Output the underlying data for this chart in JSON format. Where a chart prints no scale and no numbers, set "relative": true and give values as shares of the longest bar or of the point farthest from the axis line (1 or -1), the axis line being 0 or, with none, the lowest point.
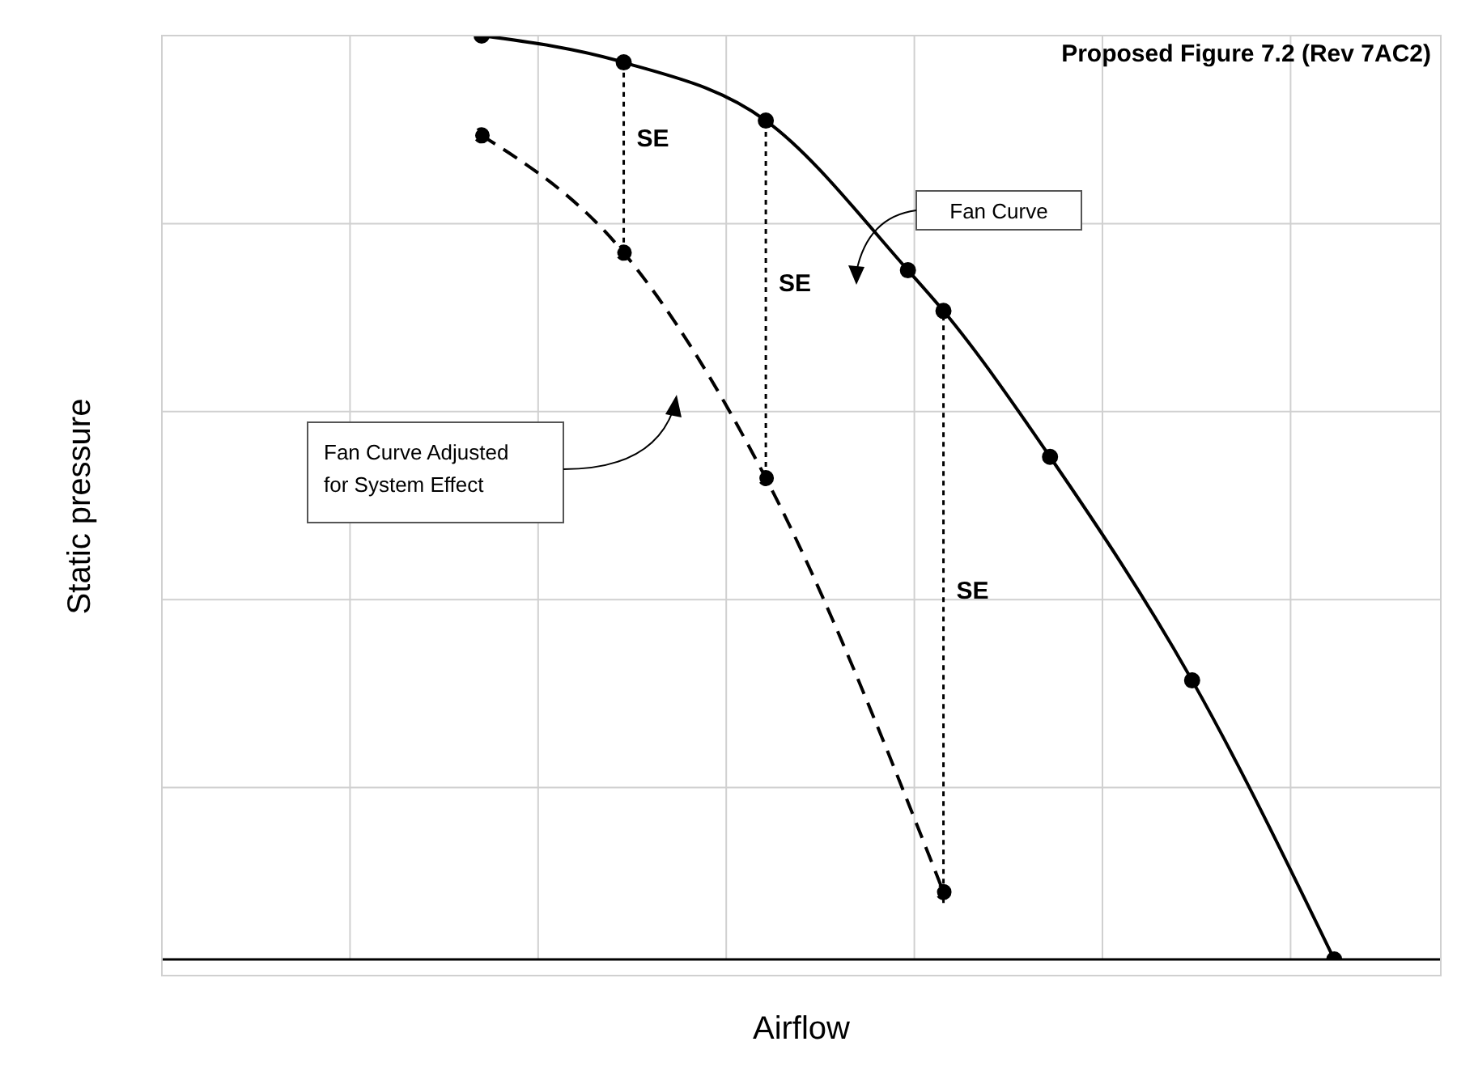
{
  "chart_data": {
    "type": "line",
    "title": "Proposed Figure 7.2 (Rev 7AC2)",
    "xlabel": "Airflow",
    "ylabel": "Static pressure",
    "relative": true,
    "grid": true,
    "marker": "circle",
    "categories": [
      null,
      null,
      null,
      null,
      null,
      null,
      null,
      null,
      null,
      null,
      null,
      null,
      null,
      null,
      null,
      null,
      null,
      null,
      null,
      null,
      null,
      null,
      null,
      null,
      null,
      null,
      null,
      null,
      null,
      null,
      null,
      null,
      null,
      null,
      null,
      null,
      null
    ],
    "series": [
      {
        "color": "#000000",
        "line_style": "solid",
        "values": [
          null,
          null,
          null,
          null,
          null,
          null,
          null,
          null,
          null,
          1,
          null,
          null,
          null,
          0.971,
          null,
          null,
          null,
          0.908,
          null,
          null,
          null,
          0.746,
          0.702,
          null,
          null,
          0.544,
          null,
          null,
          null,
          0.302,
          null,
          null,
          null,
          0,
          null,
          null,
          null
        ]
      },
      {
        "color": "#000000",
        "line_style": "dashed",
        "values": [
          null,
          null,
          null,
          null,
          null,
          null,
          null,
          null,
          null,
          0.892,
          null,
          null,
          null,
          0.765,
          null,
          null,
          null,
          0.521,
          null,
          null,
          null,
          null,
          0.073,
          null,
          null,
          null,
          null,
          null,
          null,
          null,
          null,
          null,
          null,
          null,
          null,
          null,
          null
        ]
      }
    ],
    "annotations": [
      "Fan Curve",
      "Fan Curve Adjusted for System Effect",
      "SE",
      "SE",
      "SE"
    ]
  }
}
